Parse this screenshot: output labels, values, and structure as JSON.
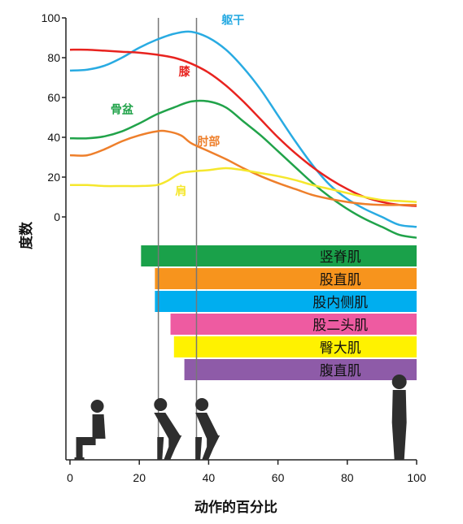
{
  "chart_data": {
    "type": "line",
    "xlabel": "动作的百分比",
    "ylabel": "度数",
    "xlim": [
      0,
      100
    ],
    "ylim": [
      -10,
      100
    ],
    "x_ticks": [
      "0",
      "20",
      "40",
      "60",
      "80",
      "100"
    ],
    "y_ticks": [
      "0",
      "20",
      "40",
      "60",
      "80",
      "100"
    ],
    "grid": false,
    "phase_markers_x": [
      25.5,
      36.5
    ],
    "series": [
      {
        "name": "躯干",
        "color": "#29abe2",
        "points": [
          [
            0,
            73.5
          ],
          [
            5,
            74
          ],
          [
            10,
            76
          ],
          [
            15,
            80
          ],
          [
            20,
            85
          ],
          [
            25,
            89
          ],
          [
            30,
            92
          ],
          [
            35,
            93
          ],
          [
            40,
            90
          ],
          [
            45,
            84
          ],
          [
            50,
            75
          ],
          [
            55,
            64
          ],
          [
            60,
            51
          ],
          [
            65,
            38
          ],
          [
            70,
            26
          ],
          [
            75,
            16
          ],
          [
            80,
            9
          ],
          [
            85,
            4
          ],
          [
            90,
            0
          ],
          [
            95,
            -4
          ],
          [
            100,
            -5
          ]
        ]
      },
      {
        "name": "膝",
        "color": "#e8231f",
        "points": [
          [
            0,
            84
          ],
          [
            5,
            84
          ],
          [
            10,
            83.5
          ],
          [
            15,
            83
          ],
          [
            20,
            82.5
          ],
          [
            25,
            81.5
          ],
          [
            30,
            80
          ],
          [
            35,
            77
          ],
          [
            40,
            72.5
          ],
          [
            45,
            66
          ],
          [
            50,
            58
          ],
          [
            55,
            49
          ],
          [
            60,
            40
          ],
          [
            65,
            32
          ],
          [
            70,
            25
          ],
          [
            75,
            19
          ],
          [
            80,
            14
          ],
          [
            85,
            10
          ],
          [
            90,
            7.5
          ],
          [
            95,
            6
          ],
          [
            100,
            5.5
          ]
        ]
      },
      {
        "name": "骨盆",
        "color": "#21a34a",
        "points": [
          [
            0,
            39.5
          ],
          [
            5,
            39.5
          ],
          [
            10,
            40.5
          ],
          [
            15,
            43
          ],
          [
            20,
            47
          ],
          [
            25,
            51.5
          ],
          [
            30,
            55
          ],
          [
            35,
            58
          ],
          [
            40,
            58
          ],
          [
            45,
            55
          ],
          [
            50,
            48
          ],
          [
            55,
            41
          ],
          [
            60,
            33
          ],
          [
            65,
            25
          ],
          [
            70,
            17
          ],
          [
            75,
            10
          ],
          [
            80,
            4
          ],
          [
            85,
            -1
          ],
          [
            90,
            -5
          ],
          [
            95,
            -9
          ],
          [
            100,
            -10.5
          ]
        ]
      },
      {
        "name": "肘部",
        "color": "#ee7f2b",
        "points": [
          [
            0,
            31
          ],
          [
            5,
            31
          ],
          [
            10,
            34
          ],
          [
            15,
            38
          ],
          [
            20,
            41
          ],
          [
            25,
            43
          ],
          [
            28,
            43
          ],
          [
            32,
            41
          ],
          [
            35,
            37
          ],
          [
            40,
            33
          ],
          [
            45,
            29
          ],
          [
            50,
            24.5
          ],
          [
            55,
            20.5
          ],
          [
            60,
            17
          ],
          [
            65,
            14
          ],
          [
            70,
            11
          ],
          [
            75,
            9
          ],
          [
            80,
            7.5
          ],
          [
            85,
            6.5
          ],
          [
            90,
            6
          ],
          [
            95,
            6
          ],
          [
            100,
            6
          ]
        ]
      },
      {
        "name": "肩",
        "color": "#f5e72d",
        "points": [
          [
            0,
            16
          ],
          [
            5,
            16
          ],
          [
            10,
            15.5
          ],
          [
            15,
            15.5
          ],
          [
            20,
            15.5
          ],
          [
            25,
            16
          ],
          [
            28,
            18
          ],
          [
            32,
            22
          ],
          [
            36,
            23
          ],
          [
            40,
            23.5
          ],
          [
            45,
            24.5
          ],
          [
            50,
            23.5
          ],
          [
            55,
            22
          ],
          [
            60,
            20.5
          ],
          [
            65,
            18.5
          ],
          [
            70,
            16
          ],
          [
            75,
            14
          ],
          [
            80,
            12
          ],
          [
            85,
            10
          ],
          [
            90,
            8.5
          ],
          [
            95,
            8
          ],
          [
            100,
            7.5
          ]
        ]
      }
    ],
    "muscles": [
      {
        "name": "竖脊肌",
        "color": "#1aa14a",
        "start": 20.5,
        "end": 100
      },
      {
        "name": "股直肌",
        "color": "#f7941d",
        "start": 24.5,
        "end": 100
      },
      {
        "name": "股内侧肌",
        "color": "#00aeef",
        "start": 24.5,
        "end": 100
      },
      {
        "name": "股二头肌",
        "color": "#ee5ba1",
        "start": 29,
        "end": 100
      },
      {
        "name": "臀大肌",
        "color": "#fff200",
        "start": 30,
        "end": 100
      },
      {
        "name": "腹直肌",
        "color": "#8e5ba8",
        "start": 33,
        "end": 100
      }
    ]
  },
  "figures": [
    {
      "pose": "seated-icon",
      "x": 6
    },
    {
      "pose": "half-squat-icon",
      "x": 28
    },
    {
      "pose": "rising-icon",
      "x": 39
    },
    {
      "pose": "standing-icon",
      "x": 95
    }
  ]
}
